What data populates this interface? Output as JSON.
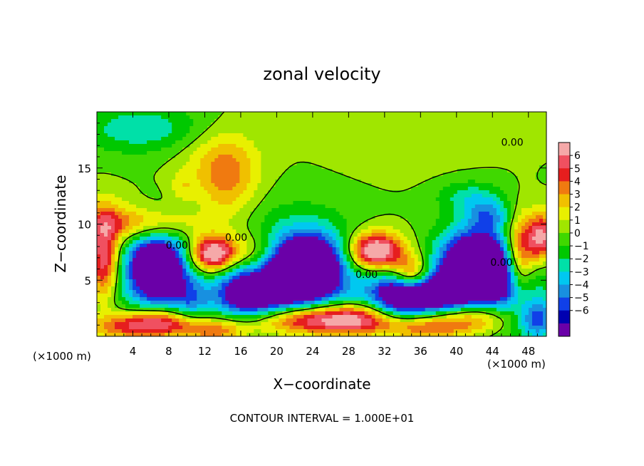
{
  "chart_data": {
    "type": "heatmap",
    "title": "zonal velocity",
    "xlabel": "X−coordinate",
    "ylabel": "Z−coordinate",
    "x_unit_left": "(×1000 m)",
    "x_unit_right": "(×1000 m)",
    "xlim": [
      0,
      50
    ],
    "ylim": [
      0,
      20
    ],
    "xticks": [
      4,
      8,
      12,
      16,
      20,
      24,
      28,
      32,
      36,
      40,
      44,
      48
    ],
    "yticks": [
      5,
      10,
      15
    ],
    "footnote": "CONTOUR INTERVAL = 1.000E+01",
    "contour_labels": [
      {
        "text": "0.00",
        "x": 46.2,
        "y": 17.0
      },
      {
        "text": "0.00",
        "x": 15.5,
        "y": 8.5
      },
      {
        "text": "0.00",
        "x": 8.9,
        "y": 7.8
      },
      {
        "text": "0.00",
        "x": 30.0,
        "y": 5.2
      },
      {
        "text": "0.00",
        "x": 45.0,
        "y": 6.3
      }
    ],
    "colorbar": {
      "labels": [
        "6",
        "5",
        "4",
        "3",
        "2",
        "1",
        "0",
        "−1",
        "−2",
        "−3",
        "−4",
        "−5",
        "−6"
      ],
      "levels": [
        6,
        5,
        4,
        3,
        2,
        1,
        0,
        -1,
        -2,
        -3,
        -4,
        -5,
        -6
      ],
      "colors": [
        "#f5a8a8",
        "#f05060",
        "#e61e1e",
        "#f07a10",
        "#f0c000",
        "#e8f000",
        "#a0e600",
        "#40d800",
        "#00c800",
        "#00e0a8",
        "#00c8f0",
        "#1890e0",
        "#1040e8",
        "#0000b0",
        "#6a00a8"
      ],
      "note": "top swatch = above 6 (light pink), bottom swatch = below -6 (purple)"
    },
    "blobs": [
      {
        "x": 5.0,
        "y": 18.5,
        "sx": 5.0,
        "sy": 1.6,
        "a": -2.8
      },
      {
        "x": 14.5,
        "y": 13.8,
        "sx": 2.4,
        "sy": 2.6,
        "a": 3.2
      },
      {
        "x": 13.0,
        "y": 16.0,
        "sx": 3.5,
        "sy": 2.0,
        "a": 1.2
      },
      {
        "x": 9.5,
        "y": 13.3,
        "sx": 1.0,
        "sy": 0.9,
        "a": 1.5
      },
      {
        "x": 5.5,
        "y": 10.0,
        "sx": 4.0,
        "sy": 1.0,
        "a": 3.5
      },
      {
        "x": 1.0,
        "y": 10.5,
        "sx": 2.2,
        "sy": 1.5,
        "a": 2.0
      },
      {
        "x": 41.5,
        "y": 12.5,
        "sx": 2.5,
        "sy": 1.0,
        "a": -2.3
      },
      {
        "x": 43.5,
        "y": 10.8,
        "sx": 1.8,
        "sy": 1.0,
        "a": -3.5
      },
      {
        "x": 24.0,
        "y": 9.0,
        "sx": 10.0,
        "sy": 3.0,
        "a": -0.5
      },
      {
        "x": 34.0,
        "y": 17.0,
        "sx": 6.0,
        "sy": 3.0,
        "a": 0.5
      },
      {
        "x": 0.8,
        "y": 6.8,
        "sx": 1.2,
        "sy": 2.5,
        "a": 6.5
      },
      {
        "x": 6.8,
        "y": 6.2,
        "sx": 2.2,
        "sy": 2.0,
        "a": -9.0
      },
      {
        "x": 7.0,
        "y": 5.0,
        "sx": 4.5,
        "sy": 3.2,
        "a": -3.0
      },
      {
        "x": 13.0,
        "y": 7.3,
        "sx": 1.8,
        "sy": 1.1,
        "a": 8.0
      },
      {
        "x": 12.5,
        "y": 7.0,
        "sx": 3.5,
        "sy": 2.0,
        "a": 2.0
      },
      {
        "x": 17.5,
        "y": 7.2,
        "sx": 2.0,
        "sy": 1.5,
        "a": 3.0
      },
      {
        "x": 23.5,
        "y": 6.5,
        "sx": 2.5,
        "sy": 1.8,
        "a": -9.0
      },
      {
        "x": 20.5,
        "y": 4.5,
        "sx": 3.5,
        "sy": 1.5,
        "a": -6.0
      },
      {
        "x": 21.5,
        "y": 5.5,
        "sx": 6.0,
        "sy": 3.5,
        "a": -3.5
      },
      {
        "x": 17.0,
        "y": 3.0,
        "sx": 2.5,
        "sy": 1.2,
        "a": -4.0
      },
      {
        "x": 31.0,
        "y": 7.6,
        "sx": 2.0,
        "sy": 1.1,
        "a": 8.0
      },
      {
        "x": 35.0,
        "y": 5.4,
        "sx": 1.6,
        "sy": 1.2,
        "a": 7.0
      },
      {
        "x": 32.5,
        "y": 7.0,
        "sx": 4.5,
        "sy": 2.5,
        "a": 3.0
      },
      {
        "x": 42.0,
        "y": 6.8,
        "sx": 2.5,
        "sy": 1.8,
        "a": -9.0
      },
      {
        "x": 38.0,
        "y": 3.6,
        "sx": 4.0,
        "sy": 1.4,
        "a": -9.0
      },
      {
        "x": 39.0,
        "y": 4.5,
        "sx": 8.0,
        "sy": 3.5,
        "a": -4.0
      },
      {
        "x": 33.5,
        "y": 3.8,
        "sx": 2.0,
        "sy": 1.5,
        "a": -4.5
      },
      {
        "x": 47.0,
        "y": 7.0,
        "sx": 1.2,
        "sy": 2.5,
        "a": 6.5
      },
      {
        "x": 49.5,
        "y": 8.8,
        "sx": 1.2,
        "sy": 1.5,
        "a": 7.0
      },
      {
        "x": 45.5,
        "y": 4.5,
        "sx": 2.0,
        "sy": 2.5,
        "a": -3.5
      },
      {
        "x": 49.0,
        "y": 1.5,
        "sx": 1.5,
        "sy": 1.2,
        "a": -5.0
      },
      {
        "x": 7.0,
        "y": 1.2,
        "sx": 3.0,
        "sy": 0.9,
        "a": 7.0
      },
      {
        "x": 2.5,
        "y": 0.8,
        "sx": 2.5,
        "sy": 0.8,
        "a": 3.0
      },
      {
        "x": 13.0,
        "y": 0.5,
        "sx": 2.5,
        "sy": 0.7,
        "a": 4.0
      },
      {
        "x": 24.0,
        "y": 1.5,
        "sx": 5.0,
        "sy": 1.0,
        "a": 7.5
      },
      {
        "x": 29.5,
        "y": 1.5,
        "sx": 3.0,
        "sy": 1.0,
        "a": 4.0
      },
      {
        "x": 41.0,
        "y": 1.8,
        "sx": 4.0,
        "sy": 1.2,
        "a": 7.5
      },
      {
        "x": 36.0,
        "y": 0.7,
        "sx": 3.0,
        "sy": 0.8,
        "a": 4.0
      },
      {
        "x": 10.5,
        "y": 3.0,
        "sx": 1.5,
        "sy": 1.5,
        "a": -2.5
      },
      {
        "x": 15.5,
        "y": 5.0,
        "sx": 1.8,
        "sy": 1.5,
        "a": -2.5
      }
    ]
  }
}
